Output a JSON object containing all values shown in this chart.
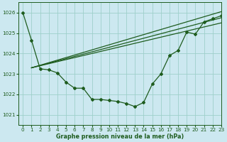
{
  "title": "Graphe pression niveau de la mer (hPa)",
  "background_color": "#cce8f0",
  "grid_color": "#9ecfca",
  "line_color": "#1e5c1e",
  "xlim": [
    -0.5,
    23
  ],
  "ylim": [
    1020.5,
    1026.5
  ],
  "xtick_labels": [
    "0",
    "1",
    "2",
    "3",
    "4",
    "5",
    "6",
    "7",
    "8",
    "9",
    "10",
    "11",
    "12",
    "13",
    "14",
    "15",
    "16",
    "17",
    "18",
    "19",
    "20",
    "21",
    "22",
    "23"
  ],
  "xtick_pos": [
    0,
    1,
    2,
    3,
    4,
    5,
    6,
    7,
    8,
    9,
    10,
    11,
    12,
    13,
    14,
    15,
    16,
    17,
    18,
    19,
    20,
    21,
    22,
    23
  ],
  "yticks": [
    1021,
    1022,
    1023,
    1024,
    1025,
    1026
  ],
  "main_line_x": [
    0,
    1,
    2,
    3,
    4,
    5,
    6,
    7,
    8,
    9,
    10,
    11,
    12,
    13,
    14,
    15,
    16,
    17,
    18,
    19,
    20,
    21,
    22,
    23
  ],
  "main_line_y": [
    1026.0,
    1024.65,
    1023.25,
    1023.2,
    1023.05,
    1022.6,
    1022.3,
    1022.3,
    1021.75,
    1021.75,
    1021.7,
    1021.65,
    1021.55,
    1021.4,
    1021.6,
    1022.5,
    1023.0,
    1023.9,
    1024.15,
    1025.05,
    1024.95,
    1025.55,
    1025.7,
    1025.85
  ],
  "line2_x": [
    1,
    23
  ],
  "line2_y": [
    1023.3,
    1026.05
  ],
  "line3_x": [
    1,
    23
  ],
  "line3_y": [
    1023.3,
    1025.75
  ],
  "line4_x": [
    1,
    23
  ],
  "line4_y": [
    1023.3,
    1025.5
  ]
}
